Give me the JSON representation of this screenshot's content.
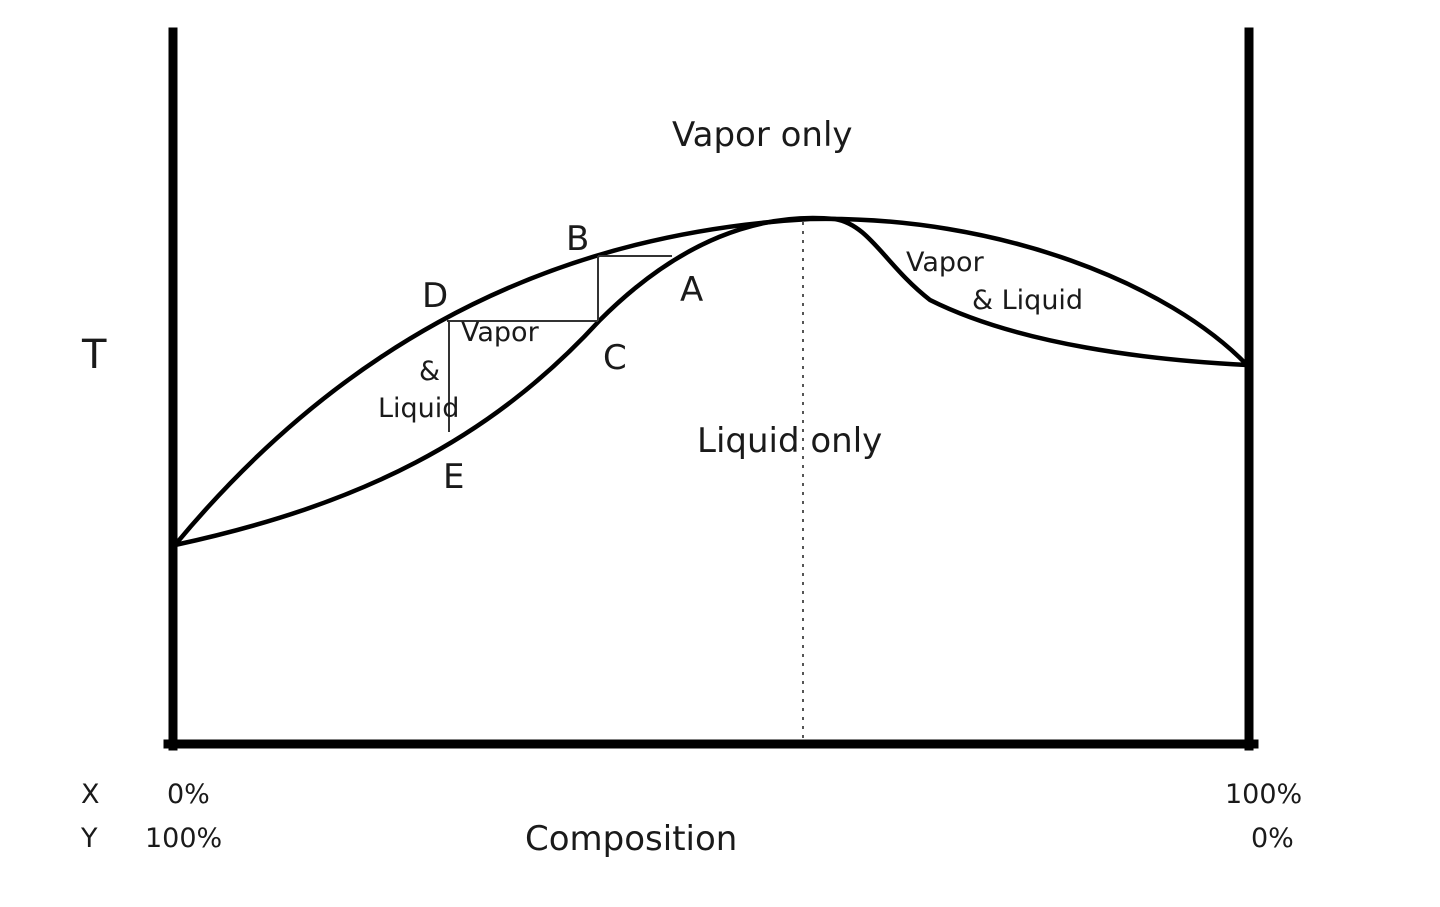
{
  "regions": {
    "vapor_only": "Vapor only",
    "liquid_only": "Liquid only",
    "left_two_phase": [
      "Vapor",
      "&",
      "Liquid"
    ],
    "right_two_phase": [
      "Vapor",
      "& Liquid"
    ]
  },
  "points": {
    "A": "A",
    "B": "B",
    "C": "C",
    "D": "D",
    "E": "E"
  },
  "axis": {
    "y_label": "T",
    "x_label": "Composition",
    "x_row_label": "X",
    "y_row_label": "Y",
    "x_left": "0%",
    "y_left": "100%",
    "x_right": "100%",
    "y_right": "0%"
  }
}
